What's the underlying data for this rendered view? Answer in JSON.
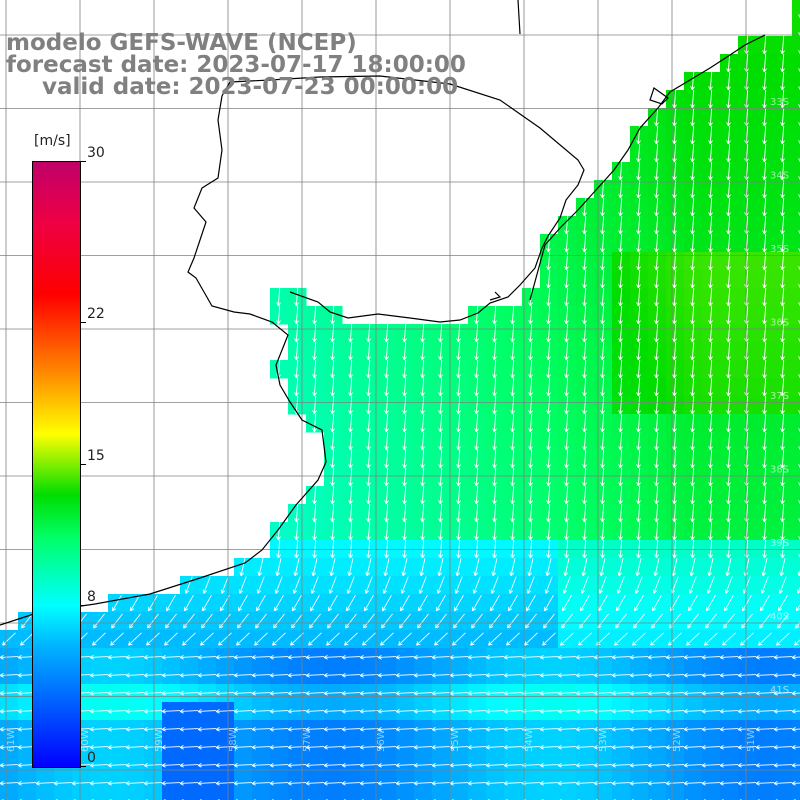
{
  "title": {
    "line1": "modelo GEFS-WAVE (NCEP)",
    "line2": "forecast date: 2023-07-17 18:00:00",
    "line3": "valid date: 2023-07-23 00:00:00"
  },
  "legend": {
    "unit": "[m/s]",
    "ticks": [
      "30",
      "22",
      "15",
      "8",
      "0"
    ],
    "tick_values": [
      30,
      22,
      15,
      8,
      0
    ],
    "range": [
      0,
      30
    ],
    "colors": [
      "#0000ff",
      "#00b4ff",
      "#00ffff",
      "#00ff66",
      "#00dd00",
      "#ffff00",
      "#ff8000",
      "#ff0000",
      "#c0006a"
    ]
  },
  "map": {
    "variable": "wind speed and direction",
    "land_color": "#ffffff",
    "coast_color": "#000000",
    "grid_color": "#808080",
    "lon_labels": [
      "61W",
      "60W",
      "59W",
      "58W",
      "57W",
      "56W",
      "55W",
      "54W",
      "53W",
      "52W",
      "51W"
    ],
    "lat_labels": [
      "33S",
      "34S",
      "35S",
      "36S",
      "37S",
      "38S",
      "39S",
      "40S",
      "41S"
    ]
  }
}
